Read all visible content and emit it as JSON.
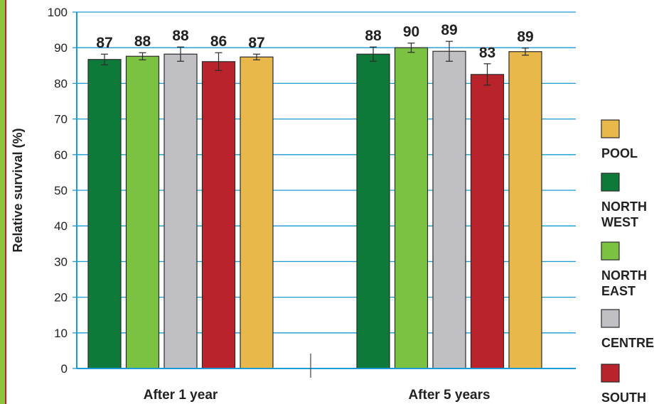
{
  "chart_data": {
    "type": "bar",
    "ylabel": "Relative survival (%)",
    "ylim": [
      0,
      100
    ],
    "yticks": [
      0,
      10,
      20,
      30,
      40,
      50,
      60,
      70,
      80,
      90,
      100
    ],
    "grid": true,
    "categories": [
      "After 1 year",
      "After 5 years"
    ],
    "series": [
      {
        "name": "NORTH WEST",
        "color": "#0d7a3a",
        "values": [
          86.7,
          88.2
        ],
        "labels": [
          "87",
          "88"
        ],
        "error": [
          1.5,
          2.0
        ]
      },
      {
        "name": "NORTH EAST",
        "color": "#7cc242",
        "values": [
          87.6,
          90.0
        ],
        "labels": [
          "88",
          "90"
        ],
        "error": [
          1.0,
          1.3
        ]
      },
      {
        "name": "CENTRE",
        "color": "#bfbfc4",
        "values": [
          88.2,
          89.0
        ],
        "labels": [
          "88",
          "89"
        ],
        "error": [
          2.0,
          2.8
        ]
      },
      {
        "name": "SOUTH",
        "color": "#b8232c",
        "values": [
          86.1,
          82.5
        ],
        "labels": [
          "86",
          "83"
        ],
        "error": [
          2.5,
          3.0
        ]
      },
      {
        "name": "POOL",
        "color": "#e8b84a",
        "values": [
          87.4,
          88.9
        ],
        "labels": [
          "87",
          "89"
        ],
        "error": [
          0.8,
          1.0
        ]
      }
    ],
    "legend_order": [
      "POOL",
      "NORTH WEST",
      "NORTH EAST",
      "CENTRE",
      "SOUTH"
    ],
    "legend_position": "right",
    "colors": {
      "axis": "#1a9ad6",
      "grid": "#1a9ad6",
      "text": "#222222"
    }
  }
}
